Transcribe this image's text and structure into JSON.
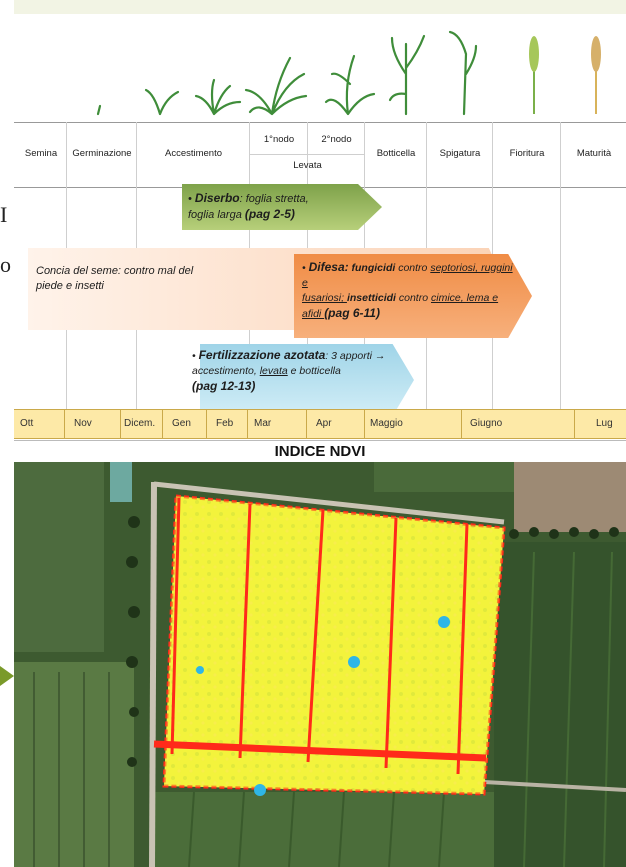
{
  "side_text": {
    "line1": "I",
    "line2": "o"
  },
  "stages": {
    "headers": [
      "Semina",
      "Germinazione",
      "Accestimento",
      "1°nodo",
      "2°nodo",
      "Levata",
      "Botticella",
      "Spigatura",
      "Fioritura",
      "Maturità"
    ]
  },
  "arrows": {
    "diserbo": {
      "title": "Diserbo",
      "line1": ": foglia stretta,",
      "line2": "foglia larga ",
      "ref": "(pag 2-5)"
    },
    "concia": {
      "text1": "Concia del seme: contro mal del",
      "text2": "piede e insetti"
    },
    "difesa": {
      "title": "Difesa:",
      "fung": " fungicidi",
      "t1": " contro ",
      "s1": "septoriosi, ruggini e",
      "s2": "fusariosi; ",
      "ins": "insetticidi",
      "t2": " contro ",
      "s3": "cimice, lema e",
      "s4": "afidi ",
      "ref": "(pag 6-11)"
    },
    "fert": {
      "title": "Fertilizzazione azotata",
      "t1": ": 3 apporti →",
      "t2": "accestimento, ",
      "lev": "levata",
      "t3": " e botticella",
      "ref": "(pag 12-13)"
    }
  },
  "months": [
    "Ott",
    "Nov",
    "Dicem.",
    "Gen",
    "Feb",
    "Mar",
    "Apr",
    "Maggio",
    "Giugno",
    "Lug"
  ],
  "map": {
    "title": "INDICE NDVI"
  },
  "colors": {
    "ndvi_high": "#f4f43a",
    "ndvi_low": "#ff2a1a",
    "water": "#2fb6e6"
  }
}
